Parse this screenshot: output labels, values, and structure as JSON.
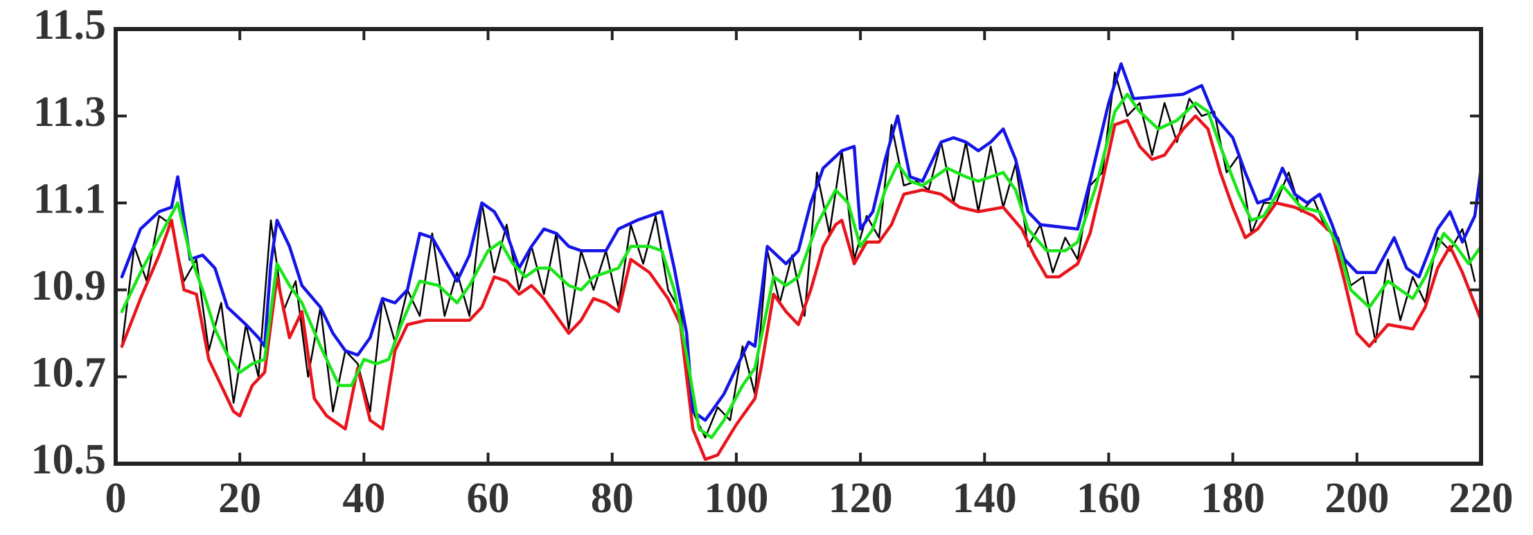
{
  "chart_data": {
    "type": "line",
    "xlim": [
      0,
      220
    ],
    "ylim": [
      10.5,
      11.5
    ],
    "xticks": [
      0,
      20,
      40,
      60,
      80,
      100,
      120,
      140,
      160,
      180,
      200,
      220
    ],
    "yticks": [
      10.5,
      10.7,
      10.9,
      11.1,
      11.3,
      11.5
    ],
    "series": [
      {
        "color": "#000000",
        "x": [
          1,
          3,
          5,
          7,
          9,
          11,
          13,
          15,
          17,
          19,
          21,
          23,
          25,
          27,
          29,
          31,
          33,
          35,
          37,
          39,
          41,
          43,
          45,
          47,
          49,
          51,
          53,
          55,
          57,
          59,
          61,
          63,
          65,
          67,
          69,
          71,
          73,
          75,
          77,
          79,
          81,
          83,
          85,
          87,
          89,
          91,
          93,
          95,
          97,
          99,
          101,
          103,
          105,
          107,
          109,
          111,
          113,
          115,
          117,
          119,
          121,
          123,
          125,
          127,
          129,
          131,
          133,
          135,
          137,
          139,
          141,
          143,
          145,
          147,
          149,
          151,
          153,
          155,
          157,
          159,
          161,
          163,
          165,
          167,
          169,
          171,
          173,
          175,
          177,
          179,
          181,
          183,
          185,
          187,
          189,
          191,
          193,
          195,
          197,
          199,
          201,
          203,
          205,
          207,
          209,
          211,
          213,
          215,
          217,
          219
        ],
        "values": [
          10.77,
          11.0,
          10.92,
          11.07,
          11.05,
          10.92,
          10.97,
          10.76,
          10.87,
          10.64,
          10.82,
          10.7,
          11.06,
          10.85,
          10.92,
          10.7,
          10.86,
          10.62,
          10.76,
          10.73,
          10.62,
          10.88,
          10.78,
          10.9,
          10.84,
          11.03,
          10.84,
          10.94,
          10.84,
          11.1,
          10.94,
          11.05,
          10.9,
          11.0,
          10.89,
          11.03,
          10.81,
          10.99,
          10.9,
          10.99,
          10.86,
          11.05,
          10.96,
          11.07,
          10.9,
          10.85,
          10.62,
          10.56,
          10.63,
          10.6,
          10.77,
          10.66,
          10.99,
          10.87,
          10.98,
          10.84,
          11.17,
          11.03,
          11.22,
          10.97,
          11.07,
          11.02,
          11.28,
          11.14,
          11.15,
          11.13,
          11.24,
          11.1,
          11.24,
          11.08,
          11.23,
          11.09,
          11.19,
          11.0,
          11.05,
          10.94,
          11.02,
          10.97,
          11.14,
          11.17,
          11.4,
          11.3,
          11.33,
          11.21,
          11.33,
          11.24,
          11.34,
          11.3,
          11.31,
          11.17,
          11.21,
          11.03,
          11.1,
          11.1,
          11.17,
          11.08,
          11.11,
          11.04,
          11.02,
          10.91,
          10.93,
          10.78,
          10.97,
          10.83,
          10.93,
          10.87,
          11.02,
          10.99,
          11.04,
          10.92
        ]
      },
      {
        "color": "#e8141c",
        "x": [
          1,
          4,
          7,
          9,
          11,
          13,
          15,
          17,
          19,
          20,
          22,
          24,
          26,
          28,
          30,
          32,
          34,
          37,
          39,
          41,
          43,
          45,
          47,
          50,
          54,
          57,
          59,
          61,
          63,
          65,
          67,
          69,
          71,
          73,
          75,
          77,
          79,
          81,
          83,
          86,
          89,
          91,
          93,
          95,
          97,
          100,
          103,
          104,
          106,
          108,
          110,
          112,
          114,
          116,
          117,
          119,
          121,
          123,
          125,
          127,
          130,
          133,
          136,
          139,
          143,
          146,
          148,
          150,
          152,
          155,
          157,
          159,
          161,
          163,
          165,
          167,
          169,
          172,
          174,
          176,
          178,
          180,
          182,
          184,
          187,
          190,
          193,
          196,
          198,
          200,
          202,
          205,
          209,
          211,
          213,
          215,
          217,
          220
        ],
        "values": [
          10.77,
          10.88,
          10.98,
          11.06,
          10.9,
          10.89,
          10.74,
          10.68,
          10.62,
          10.61,
          10.68,
          10.71,
          10.93,
          10.79,
          10.85,
          10.65,
          10.61,
          10.58,
          10.72,
          10.6,
          10.58,
          10.76,
          10.82,
          10.83,
          10.83,
          10.83,
          10.86,
          10.93,
          10.92,
          10.89,
          10.91,
          10.88,
          10.84,
          10.8,
          10.83,
          10.88,
          10.87,
          10.85,
          10.97,
          10.94,
          10.88,
          10.82,
          10.58,
          10.51,
          10.52,
          10.59,
          10.65,
          10.72,
          10.89,
          10.85,
          10.82,
          10.9,
          11.0,
          11.05,
          11.06,
          10.96,
          11.01,
          11.01,
          11.05,
          11.12,
          11.13,
          11.12,
          11.09,
          11.08,
          11.09,
          11.04,
          10.98,
          10.93,
          10.93,
          10.96,
          11.03,
          11.15,
          11.28,
          11.29,
          11.23,
          11.2,
          11.21,
          11.27,
          11.3,
          11.27,
          11.17,
          11.09,
          11.02,
          11.04,
          11.1,
          11.09,
          11.07,
          11.03,
          10.92,
          10.8,
          10.77,
          10.82,
          10.81,
          10.86,
          10.95,
          11.0,
          10.94,
          10.83
        ]
      },
      {
        "color": "#1414e6",
        "x": [
          1,
          4,
          7,
          9,
          10,
          12,
          14,
          16,
          18,
          21,
          23,
          24,
          25,
          26,
          28,
          30,
          33,
          35,
          37,
          39,
          41,
          43,
          45,
          47,
          49,
          51,
          53,
          55,
          57,
          59,
          61,
          63,
          65,
          67,
          69,
          71,
          73,
          75,
          79,
          81,
          84,
          88,
          90,
          92,
          93,
          95,
          98,
          100,
          102,
          103,
          105,
          108,
          110,
          112,
          114,
          117,
          119,
          120,
          122,
          124,
          126,
          128,
          130,
          133,
          135,
          137,
          139,
          141,
          143,
          145,
          147,
          149,
          155,
          157,
          160,
          162,
          164,
          172,
          175,
          177,
          180,
          182,
          184,
          186,
          188,
          190,
          192,
          194,
          196,
          198,
          200,
          203,
          206,
          208,
          210,
          213,
          215,
          217,
          219,
          220
        ],
        "values": [
          10.93,
          11.04,
          11.08,
          11.09,
          11.16,
          10.97,
          10.98,
          10.95,
          10.86,
          10.82,
          10.79,
          10.77,
          10.96,
          11.06,
          11.0,
          10.91,
          10.86,
          10.8,
          10.76,
          10.75,
          10.79,
          10.88,
          10.87,
          10.9,
          11.03,
          11.02,
          10.97,
          10.92,
          10.98,
          11.1,
          11.08,
          11.03,
          10.95,
          11.0,
          11.04,
          11.03,
          11.0,
          10.99,
          10.99,
          11.04,
          11.06,
          11.08,
          10.95,
          10.8,
          10.62,
          10.6,
          10.66,
          10.72,
          10.78,
          10.77,
          11.0,
          10.96,
          10.99,
          11.1,
          11.18,
          11.22,
          11.23,
          11.04,
          11.08,
          11.2,
          11.3,
          11.16,
          11.15,
          11.24,
          11.25,
          11.24,
          11.22,
          11.24,
          11.27,
          11.2,
          11.08,
          11.05,
          11.04,
          11.15,
          11.33,
          11.42,
          11.34,
          11.35,
          11.37,
          11.3,
          11.25,
          11.17,
          11.1,
          11.11,
          11.18,
          11.12,
          11.1,
          11.12,
          11.05,
          10.97,
          10.94,
          10.94,
          11.02,
          10.95,
          10.93,
          11.04,
          11.08,
          11.01,
          11.07,
          11.18
        ]
      },
      {
        "color": "#19e619",
        "x": [
          1,
          4,
          7,
          10,
          12,
          14,
          16,
          18,
          20,
          22,
          24,
          26,
          28,
          30,
          33,
          36,
          38,
          40,
          42,
          44,
          46,
          49,
          52,
          55,
          57,
          60,
          62,
          64,
          66,
          68,
          70,
          73,
          75,
          77,
          79,
          81,
          83,
          86,
          88,
          90,
          92,
          94,
          96,
          98,
          101,
          103,
          106,
          108,
          110,
          113,
          116,
          118,
          120,
          122,
          124,
          126,
          128,
          130,
          134,
          137,
          139,
          141,
          143,
          145,
          147,
          150,
          153,
          155,
          158,
          161,
          163,
          165,
          168,
          171,
          174,
          176,
          178,
          181,
          183,
          185,
          188,
          191,
          194,
          197,
          199,
          202,
          205,
          207,
          209,
          211,
          214,
          216,
          218,
          220
        ],
        "values": [
          10.85,
          10.94,
          11.02,
          11.1,
          10.98,
          10.9,
          10.81,
          10.75,
          10.71,
          10.73,
          10.74,
          10.96,
          10.91,
          10.87,
          10.77,
          10.68,
          10.68,
          10.74,
          10.73,
          10.74,
          10.82,
          10.92,
          10.91,
          10.87,
          10.91,
          10.99,
          11.01,
          10.96,
          10.93,
          10.95,
          10.95,
          10.91,
          10.9,
          10.93,
          10.94,
          10.95,
          11.0,
          11.0,
          10.99,
          10.9,
          10.75,
          10.58,
          10.56,
          10.6,
          10.68,
          10.72,
          10.93,
          10.91,
          10.93,
          11.05,
          11.13,
          11.1,
          11.0,
          11.04,
          11.13,
          11.19,
          11.15,
          11.14,
          11.18,
          11.16,
          11.15,
          11.16,
          11.17,
          11.13,
          11.04,
          10.99,
          10.99,
          11.01,
          11.14,
          11.31,
          11.35,
          11.31,
          11.27,
          11.29,
          11.33,
          11.31,
          11.23,
          11.12,
          11.06,
          11.07,
          11.14,
          11.09,
          11.08,
          11.0,
          10.9,
          10.86,
          10.92,
          10.9,
          10.88,
          10.93,
          11.03,
          11.0,
          10.96,
          11.0
        ]
      }
    ]
  }
}
